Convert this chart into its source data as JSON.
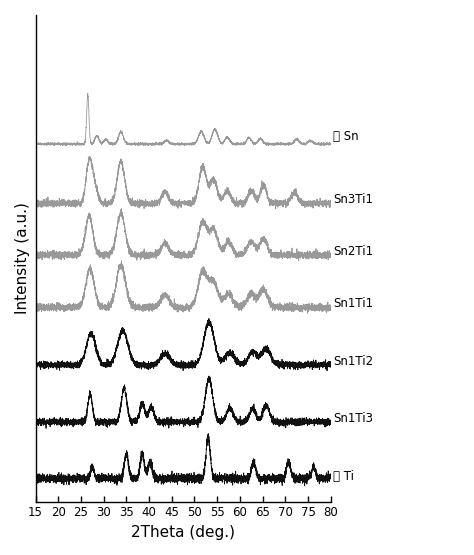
{
  "x_min": 15,
  "x_max": 80,
  "xlabel": "2Theta (deg.)",
  "ylabel": "Intensity (a.u.)",
  "xticks": [
    15,
    20,
    25,
    30,
    35,
    40,
    45,
    50,
    55,
    60,
    65,
    70,
    75,
    80
  ],
  "labels": [
    "绍 Sn",
    "Sn3Ti1",
    "Sn2Ti1",
    "Sn1Ti1",
    "Sn1Ti2",
    "Sn1Ti3",
    "绍 Ti"
  ],
  "colors_gray": "#999999",
  "colors_black": "#111111",
  "color_pattern": [
    "gray",
    "gray",
    "gray",
    "gray",
    "black",
    "black",
    "black"
  ],
  "offsets": [
    6.5,
    5.3,
    4.3,
    3.3,
    2.2,
    1.1,
    0.0
  ],
  "figsize": [
    4.74,
    5.55
  ],
  "dpi": 100,
  "noise_level": 0.03,
  "linewidth": 0.6,
  "label_fontsize": 8.5,
  "axis_fontsize": 11
}
